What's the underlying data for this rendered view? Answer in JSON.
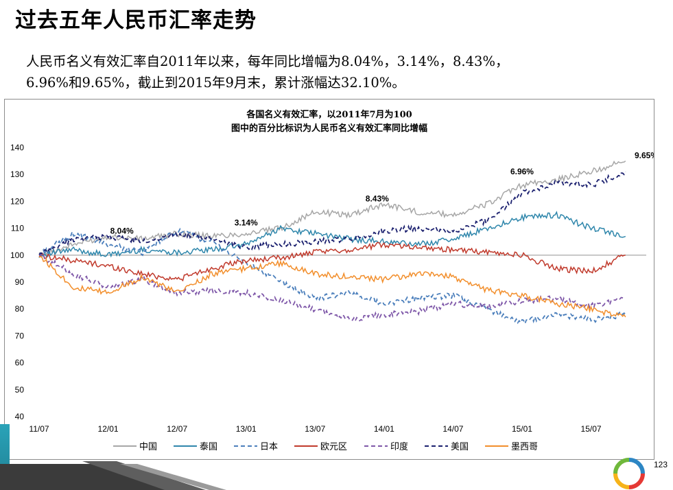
{
  "slide": {
    "title": "过去五年人民币汇率走势",
    "body_line1": "人民币名义有效汇率自2011年以来，每年同比增幅为8.04%，3.14%，8.43%，",
    "body_line2": "6.96%和9.65%，截止到2015年9月末，累计涨幅达32.10%。",
    "page_number": "123"
  },
  "chart_data": {
    "type": "line",
    "title": "各国名义有效汇率，以2011年7月为100",
    "subtitle": "图中的百分比标识为人民币名义有效汇率同比增幅",
    "xlabel": "",
    "ylabel": "",
    "ylim": [
      40,
      140
    ],
    "yticks": [
      "140",
      "130",
      "120",
      "110",
      "100",
      "90",
      "80",
      "70",
      "60",
      "50",
      "40"
    ],
    "xticks": [
      "11/07",
      "12/01",
      "12/07",
      "13/01",
      "13/07",
      "14/01",
      "14/07",
      "15/01",
      "15/07"
    ],
    "reference_line": 100,
    "grid": false,
    "legend_position": "bottom",
    "annotations": [
      {
        "text": "8.04%",
        "x": 12.1,
        "y": 108
      },
      {
        "text": "3.14%",
        "x": 13.0,
        "y": 111
      },
      {
        "text": "8.43%",
        "x": 13.95,
        "y": 120
      },
      {
        "text": "6.96%",
        "x": 15.0,
        "y": 130
      },
      {
        "text": "9.65%",
        "x": 15.9,
        "y": 136
      }
    ],
    "x": [
      11.5,
      11.75,
      12.0,
      12.25,
      12.5,
      12.75,
      13.0,
      13.25,
      13.5,
      13.75,
      14.0,
      14.25,
      14.5,
      14.75,
      15.0,
      15.25,
      15.5,
      15.75
    ],
    "series": [
      {
        "name": "中国",
        "color": "#a6a6a6",
        "dash": "solid",
        "values": [
          100,
          104,
          107,
          106,
          108,
          107,
          108,
          110,
          116,
          115,
          119,
          116,
          115,
          119,
          126,
          128,
          131,
          135
        ]
      },
      {
        "name": "泰国",
        "color": "#2e86ab",
        "dash": "solid",
        "values": [
          100,
          102,
          100,
          102,
          101,
          102,
          104,
          110,
          108,
          106,
          105,
          104,
          106,
          110,
          114,
          115,
          110,
          107
        ]
      },
      {
        "name": "日本",
        "color": "#4a7ebb",
        "dash": "dashed",
        "values": [
          100,
          108,
          104,
          101,
          109,
          105,
          97,
          90,
          84,
          86,
          82,
          84,
          85,
          80,
          75,
          78,
          76,
          78
        ]
      },
      {
        "name": "欧元区",
        "color": "#c0392b",
        "dash": "solid",
        "values": [
          100,
          98,
          96,
          93,
          91,
          95,
          98,
          99,
          101,
          102,
          104,
          103,
          102,
          101,
          100,
          95,
          94,
          100
        ]
      },
      {
        "name": "印度",
        "color": "#7e57a8",
        "dash": "dashed",
        "values": [
          100,
          93,
          88,
          91,
          86,
          87,
          86,
          83,
          80,
          76,
          78,
          79,
          82,
          81,
          83,
          84,
          81,
          84
        ]
      },
      {
        "name": "美国",
        "color": "#1a1f6e",
        "dash": "dashed",
        "values": [
          100,
          106,
          107,
          105,
          108,
          106,
          103,
          104,
          105,
          106,
          109,
          110,
          109,
          113,
          123,
          127,
          126,
          131
        ]
      },
      {
        "name": "墨西哥",
        "color": "#f28e2b",
        "dash": "solid",
        "values": [
          100,
          88,
          86,
          92,
          86,
          93,
          95,
          97,
          93,
          92,
          91,
          93,
          92,
          87,
          85,
          82,
          80,
          77
        ]
      }
    ]
  }
}
